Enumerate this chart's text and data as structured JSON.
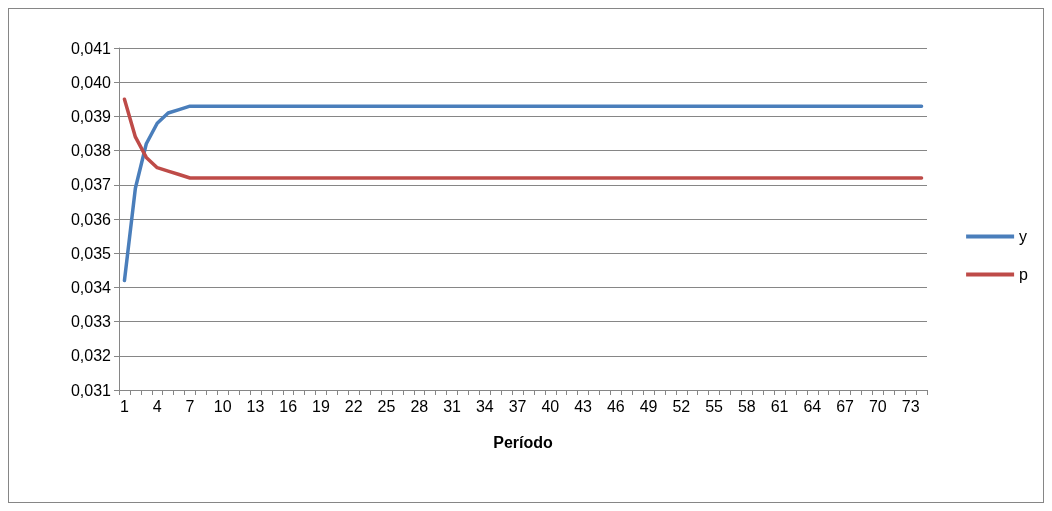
{
  "chart_data": {
    "type": "line",
    "xlabel": "Período",
    "categories": [
      "1",
      null,
      null,
      "4",
      null,
      null,
      "7",
      null,
      null,
      "10",
      null,
      null,
      "13",
      null,
      null,
      "16",
      null,
      null,
      "19",
      null,
      null,
      "22",
      null,
      null,
      "25",
      null,
      null,
      "28",
      null,
      null,
      "31",
      null,
      null,
      "34",
      null,
      null,
      "37",
      null,
      null,
      "40",
      null,
      null,
      "43",
      null,
      null,
      "46",
      null,
      null,
      "49",
      null,
      null,
      "52",
      null,
      null,
      "55",
      null,
      null,
      "58",
      null,
      null,
      "61",
      null,
      null,
      "64",
      null,
      null,
      "67",
      null,
      null,
      "70",
      null,
      null,
      "73",
      null
    ],
    "series": [
      {
        "name": "y",
        "color": "#4a7ebb",
        "values": [
          0.0342,
          0.0369,
          0.0382,
          0.0388,
          0.0391,
          0.0392,
          0.0393,
          0.0393,
          0.0393,
          0.0393,
          0.0393,
          0.0393,
          0.0393,
          0.0393,
          0.0393,
          0.0393,
          0.0393,
          0.0393,
          0.0393,
          0.0393,
          0.0393,
          0.0393,
          0.0393,
          0.0393,
          0.0393,
          0.0393,
          0.0393,
          0.0393,
          0.0393,
          0.0393,
          0.0393,
          0.0393,
          0.0393,
          0.0393,
          0.0393,
          0.0393,
          0.0393,
          0.0393,
          0.0393,
          0.0393,
          0.0393,
          0.0393,
          0.0393,
          0.0393,
          0.0393,
          0.0393,
          0.0393,
          0.0393,
          0.0393,
          0.0393,
          0.0393,
          0.0393,
          0.0393,
          0.0393,
          0.0393,
          0.0393,
          0.0393,
          0.0393,
          0.0393,
          0.0393,
          0.0393,
          0.0393,
          0.0393,
          0.0393,
          0.0393,
          0.0393,
          0.0393,
          0.0393,
          0.0393,
          0.0393,
          0.0393,
          0.0393,
          0.0393,
          0.0393
        ]
      },
      {
        "name": "p",
        "color": "#be4b48",
        "values": [
          0.0395,
          0.0384,
          0.0378,
          0.0375,
          0.0374,
          0.0373,
          0.0372,
          0.0372,
          0.0372,
          0.0372,
          0.0372,
          0.0372,
          0.0372,
          0.0372,
          0.0372,
          0.0372,
          0.0372,
          0.0372,
          0.0372,
          0.0372,
          0.0372,
          0.0372,
          0.0372,
          0.0372,
          0.0372,
          0.0372,
          0.0372,
          0.0372,
          0.0372,
          0.0372,
          0.0372,
          0.0372,
          0.0372,
          0.0372,
          0.0372,
          0.0372,
          0.0372,
          0.0372,
          0.0372,
          0.0372,
          0.0372,
          0.0372,
          0.0372,
          0.0372,
          0.0372,
          0.0372,
          0.0372,
          0.0372,
          0.0372,
          0.0372,
          0.0372,
          0.0372,
          0.0372,
          0.0372,
          0.0372,
          0.0372,
          0.0372,
          0.0372,
          0.0372,
          0.0372,
          0.0372,
          0.0372,
          0.0372,
          0.0372,
          0.0372,
          0.0372,
          0.0372,
          0.0372,
          0.0372,
          0.0372,
          0.0372,
          0.0372,
          0.0372,
          0.0372
        ]
      }
    ],
    "ylim": [
      0.031,
      0.041
    ],
    "yticks": [
      {
        "value": 0.031,
        "label": "0,031"
      },
      {
        "value": 0.032,
        "label": "0,032"
      },
      {
        "value": 0.033,
        "label": "0,033"
      },
      {
        "value": 0.034,
        "label": "0,034"
      },
      {
        "value": 0.035,
        "label": "0,035"
      },
      {
        "value": 0.036,
        "label": "0,036"
      },
      {
        "value": 0.037,
        "label": "0,037"
      },
      {
        "value": 0.038,
        "label": "0,038"
      },
      {
        "value": 0.039,
        "label": "0,039"
      },
      {
        "value": 0.04,
        "label": "0,040"
      },
      {
        "value": 0.041,
        "label": "0,041"
      }
    ],
    "grid": "y",
    "legend": "right",
    "marker": "none",
    "line_style": "solid"
  }
}
